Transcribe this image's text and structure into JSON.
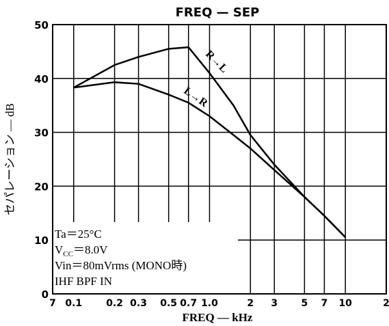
{
  "chart_data": {
    "type": "line",
    "title": "FREQ  —  SEP",
    "x_label": "FREQ  —  kHz",
    "y_label": "セパレーション  —  dB",
    "log_x": true,
    "grid": true,
    "x": [
      0.1,
      0.2,
      0.3,
      0.5,
      0.7,
      1.0,
      1.5,
      2,
      3,
      5,
      7,
      10
    ],
    "series": [
      {
        "name": "R→L",
        "color": "#000000",
        "values": [
          38.3,
          42.5,
          44,
          45.5,
          45.8,
          41,
          35,
          29.5,
          24,
          18,
          14.5,
          10.5
        ]
      },
      {
        "name": "L→R",
        "color": "#000000",
        "values": [
          38.3,
          39.3,
          39,
          37,
          35.5,
          33,
          29.5,
          27,
          23,
          18,
          14.5,
          10.5
        ]
      }
    ],
    "xlim": [
      0.07,
      20
    ],
    "ylim": [
      0,
      50
    ],
    "yticks": [
      0,
      10,
      20,
      30,
      40,
      50
    ],
    "xticks": [
      {
        "value": 0.07,
        "label": "7"
      },
      0.1,
      0.2,
      0.3,
      0.5,
      0.7,
      {
        "value": 1,
        "label": "1.0"
      },
      {
        "value": 2,
        "label": "2"
      },
      {
        "value": 3,
        "label": "3"
      },
      {
        "value": 5,
        "label": "5"
      },
      {
        "value": 7,
        "label": "7"
      },
      10,
      {
        "value": 20,
        "label": "2"
      }
    ],
    "xtick_labels": [
      "7",
      "0.1",
      "2",
      "3",
      "5",
      "7",
      "1.0",
      "2",
      "3",
      "5",
      "7",
      "10",
      "2"
    ],
    "conditions": [
      "Ta＝25°C",
      {
        "main": "V",
        "sub": "CC",
        "rest": "＝8.0V"
      },
      "Vin＝80mVrms (MONO時)",
      "IHF BPF IN"
    ]
  }
}
